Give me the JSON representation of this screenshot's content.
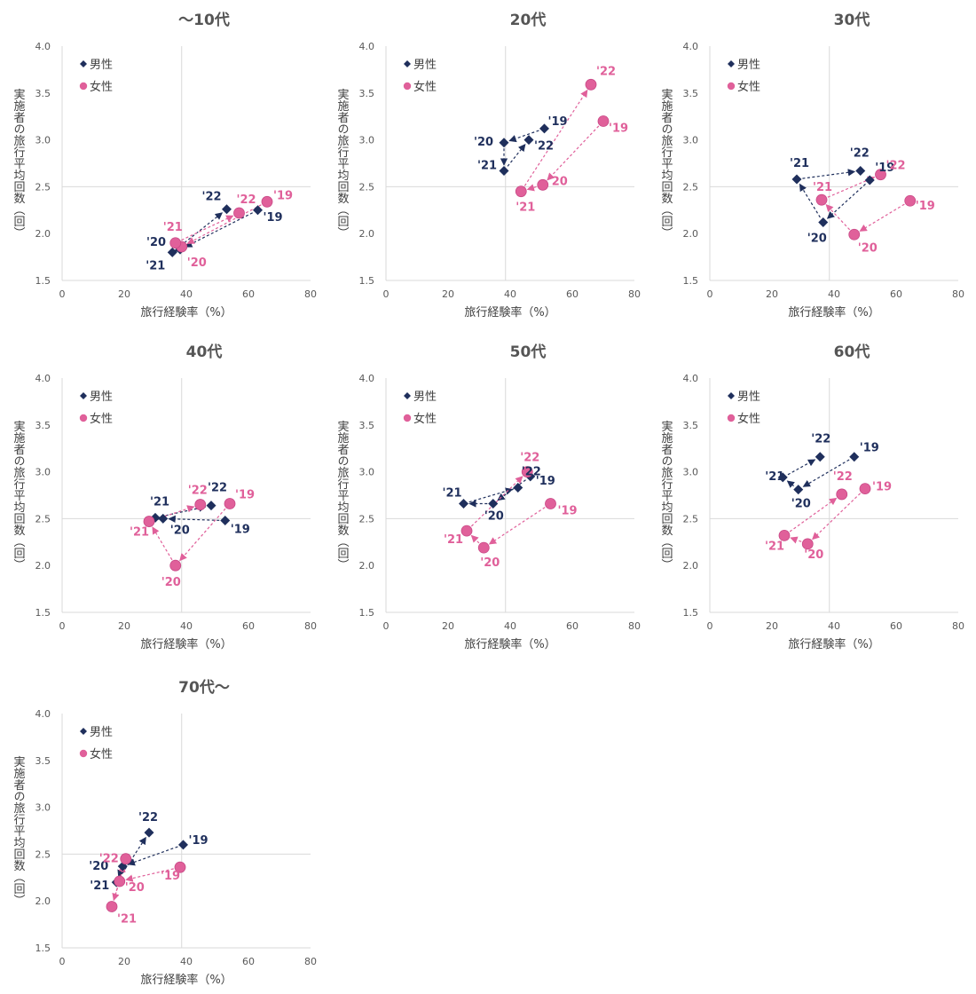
{
  "chart_data": [
    {
      "type": "scatter",
      "title": "～10代",
      "xlabel": "旅行経験率（%）",
      "ylabel": "実施者の旅行平均回数（回）",
      "xlim": [
        0,
        80
      ],
      "ylim": [
        1.5,
        4.0
      ],
      "xticks": [
        "0",
        "20",
        "40",
        "60",
        "80"
      ],
      "yticks": [
        "1.5",
        "2.0",
        "2.5",
        "3.0",
        "3.5",
        "4.0"
      ],
      "reference_lines": {
        "x": 38.5,
        "y": 2.5
      },
      "legend_position": "top-left",
      "series": [
        {
          "name": "男性",
          "color": "#1f2f5c",
          "marker": "diamond",
          "points": [
            {
              "label": "'19",
              "x": 63,
              "y": 2.25
            },
            {
              "label": "'20",
              "x": 38,
              "y": 1.83
            },
            {
              "label": "'21",
              "x": 35.5,
              "y": 1.8
            },
            {
              "label": "'22",
              "x": 53,
              "y": 2.26
            }
          ]
        },
        {
          "name": "女性",
          "color": "#e0609a",
          "marker": "circle",
          "points": [
            {
              "label": "'19",
              "x": 66,
              "y": 2.34
            },
            {
              "label": "'20",
              "x": 38.5,
              "y": 1.86
            },
            {
              "label": "'21",
              "x": 36.5,
              "y": 1.9
            },
            {
              "label": "'22",
              "x": 57,
              "y": 2.22
            }
          ]
        }
      ]
    },
    {
      "type": "scatter",
      "title": "20代",
      "xlabel": "旅行経験率（%）",
      "ylabel": "実施者の旅行平均回数（回）",
      "xlim": [
        0,
        80
      ],
      "ylim": [
        1.5,
        4.0
      ],
      "xticks": [
        "0",
        "20",
        "40",
        "60",
        "80"
      ],
      "yticks": [
        "1.5",
        "2.0",
        "2.5",
        "3.0",
        "3.5",
        "4.0"
      ],
      "reference_lines": {
        "x": 38.5,
        "y": 2.5
      },
      "legend_position": "top-left",
      "series": [
        {
          "name": "男性",
          "color": "#1f2f5c",
          "marker": "diamond",
          "points": [
            {
              "label": "'19",
              "x": 51,
              "y": 3.12
            },
            {
              "label": "'20",
              "x": 38,
              "y": 2.97
            },
            {
              "label": "'21",
              "x": 38,
              "y": 2.67
            },
            {
              "label": "'22",
              "x": 46,
              "y": 3.0
            }
          ]
        },
        {
          "name": "女性",
          "color": "#e0609a",
          "marker": "circle",
          "points": [
            {
              "label": "'19",
              "x": 70,
              "y": 3.2
            },
            {
              "label": "'20",
              "x": 50.5,
              "y": 2.52
            },
            {
              "label": "'21",
              "x": 43.5,
              "y": 2.45
            },
            {
              "label": "'22",
              "x": 66,
              "y": 3.59
            }
          ]
        }
      ]
    },
    {
      "type": "scatter",
      "title": "30代",
      "xlabel": "旅行経験率（%）",
      "ylabel": "実施者の旅行平均回数（回）",
      "xlim": [
        0,
        80
      ],
      "ylim": [
        1.5,
        4.0
      ],
      "xticks": [
        "0",
        "20",
        "40",
        "60",
        "80"
      ],
      "yticks": [
        "1.5",
        "2.0",
        "2.5",
        "3.0",
        "3.5",
        "4.0"
      ],
      "reference_lines": {
        "x": 38.5,
        "y": 2.5
      },
      "legend_position": "top-left",
      "series": [
        {
          "name": "男性",
          "color": "#1f2f5c",
          "marker": "diamond",
          "points": [
            {
              "label": "'19",
              "x": 51.5,
              "y": 2.57
            },
            {
              "label": "'20",
              "x": 36.5,
              "y": 2.12
            },
            {
              "label": "'21",
              "x": 28,
              "y": 2.58
            },
            {
              "label": "'22",
              "x": 48.5,
              "y": 2.67
            }
          ]
        },
        {
          "name": "女性",
          "color": "#e0609a",
          "marker": "circle",
          "points": [
            {
              "label": "'19",
              "x": 64.5,
              "y": 2.35
            },
            {
              "label": "'20",
              "x": 46.5,
              "y": 1.99
            },
            {
              "label": "'21",
              "x": 36,
              "y": 2.36
            },
            {
              "label": "'22",
              "x": 55,
              "y": 2.63
            }
          ]
        }
      ]
    },
    {
      "type": "scatter",
      "title": "40代",
      "xlabel": "旅行経験率（%）",
      "ylabel": "実施者の旅行平均回数（回）",
      "xlim": [
        0,
        80
      ],
      "ylim": [
        1.5,
        4.0
      ],
      "xticks": [
        "0",
        "20",
        "40",
        "60",
        "80"
      ],
      "yticks": [
        "1.5",
        "2.0",
        "2.5",
        "3.0",
        "3.5",
        "4.0"
      ],
      "reference_lines": {
        "x": 38.5,
        "y": 2.5
      },
      "legend_position": "top-left",
      "series": [
        {
          "name": "男性",
          "color": "#1f2f5c",
          "marker": "diamond",
          "points": [
            {
              "label": "'19",
              "x": 52.5,
              "y": 2.48
            },
            {
              "label": "'20",
              "x": 32.5,
              "y": 2.5
            },
            {
              "label": "'21",
              "x": 30,
              "y": 2.51
            },
            {
              "label": "'22",
              "x": 48,
              "y": 2.64
            }
          ]
        },
        {
          "name": "女性",
          "color": "#e0609a",
          "marker": "circle",
          "points": [
            {
              "label": "'19",
              "x": 54,
              "y": 2.66
            },
            {
              "label": "'20",
              "x": 36.5,
              "y": 2.0
            },
            {
              "label": "'21",
              "x": 28,
              "y": 2.47
            },
            {
              "label": "'22",
              "x": 44.5,
              "y": 2.65
            }
          ]
        }
      ]
    },
    {
      "type": "scatter",
      "title": "50代",
      "xlabel": "旅行経験率（%）",
      "ylabel": "実施者の旅行平均回数（回）",
      "xlim": [
        0,
        80
      ],
      "ylim": [
        1.5,
        4.0
      ],
      "xticks": [
        "0",
        "20",
        "40",
        "60",
        "80"
      ],
      "yticks": [
        "1.5",
        "2.0",
        "2.5",
        "3.0",
        "3.5",
        "4.0"
      ],
      "reference_lines": {
        "x": 38.5,
        "y": 2.5
      },
      "legend_position": "top-left",
      "series": [
        {
          "name": "男性",
          "color": "#1f2f5c",
          "marker": "diamond",
          "points": [
            {
              "label": "'19",
              "x": 46.5,
              "y": 2.95
            },
            {
              "label": "'20",
              "x": 34.5,
              "y": 2.66
            },
            {
              "label": "'21",
              "x": 25,
              "y": 2.66
            },
            {
              "label": "'22",
              "x": 42.5,
              "y": 2.83
            }
          ]
        },
        {
          "name": "女性",
          "color": "#e0609a",
          "marker": "circle",
          "points": [
            {
              "label": "'19",
              "x": 53,
              "y": 2.66
            },
            {
              "label": "'20",
              "x": 31.5,
              "y": 2.19
            },
            {
              "label": "'21",
              "x": 26,
              "y": 2.37
            },
            {
              "label": "'22",
              "x": 45.5,
              "y": 3.0
            }
          ]
        }
      ]
    },
    {
      "type": "scatter",
      "title": "60代",
      "xlabel": "旅行経験率（%）",
      "ylabel": "実施者の旅行平均回数（回）",
      "xlim": [
        0,
        80
      ],
      "ylim": [
        1.5,
        4.0
      ],
      "xticks": [
        "0",
        "20",
        "40",
        "60",
        "80"
      ],
      "yticks": [
        "1.5",
        "2.0",
        "2.5",
        "3.0",
        "3.5",
        "4.0"
      ],
      "reference_lines": {
        "x": 38.5,
        "y": 2.5
      },
      "legend_position": "top-left",
      "series": [
        {
          "name": "男性",
          "color": "#1f2f5c",
          "marker": "diamond",
          "points": [
            {
              "label": "'19",
              "x": 46.5,
              "y": 3.16
            },
            {
              "label": "'20",
              "x": 28.5,
              "y": 2.81
            },
            {
              "label": "'21",
              "x": 23.5,
              "y": 2.94
            },
            {
              "label": "'22",
              "x": 35.5,
              "y": 3.16
            }
          ]
        },
        {
          "name": "女性",
          "color": "#e0609a",
          "marker": "circle",
          "points": [
            {
              "label": "'19",
              "x": 50,
              "y": 2.82
            },
            {
              "label": "'20",
              "x": 31.5,
              "y": 2.23
            },
            {
              "label": "'21",
              "x": 24,
              "y": 2.32
            },
            {
              "label": "'22",
              "x": 42.5,
              "y": 2.76
            }
          ]
        }
      ]
    },
    {
      "type": "scatter",
      "title": "70代～",
      "xlabel": "旅行経験率（%）",
      "ylabel": "実施者の旅行平均回数（回）",
      "xlim": [
        0,
        80
      ],
      "ylim": [
        1.5,
        4.0
      ],
      "xticks": [
        "0",
        "20",
        "40",
        "60",
        "80"
      ],
      "yticks": [
        "1.5",
        "2.0",
        "2.5",
        "3.0",
        "3.5",
        "4.0"
      ],
      "reference_lines": {
        "x": 38.5,
        "y": 2.5
      },
      "legend_position": "top-left",
      "series": [
        {
          "name": "男性",
          "color": "#1f2f5c",
          "marker": "diamond",
          "points": [
            {
              "label": "'19",
              "x": 39,
              "y": 2.6
            },
            {
              "label": "'20",
              "x": 19.5,
              "y": 2.37
            },
            {
              "label": "'21",
              "x": 17.5,
              "y": 2.2
            },
            {
              "label": "'22",
              "x": 28,
              "y": 2.73
            }
          ]
        },
        {
          "name": "女性",
          "color": "#e0609a",
          "marker": "circle",
          "points": [
            {
              "label": "'19",
              "x": 38,
              "y": 2.36
            },
            {
              "label": "'20",
              "x": 18.5,
              "y": 2.21
            },
            {
              "label": "'21",
              "x": 16,
              "y": 1.94
            },
            {
              "label": "'22",
              "x": 20.5,
              "y": 2.45
            }
          ]
        }
      ]
    }
  ]
}
